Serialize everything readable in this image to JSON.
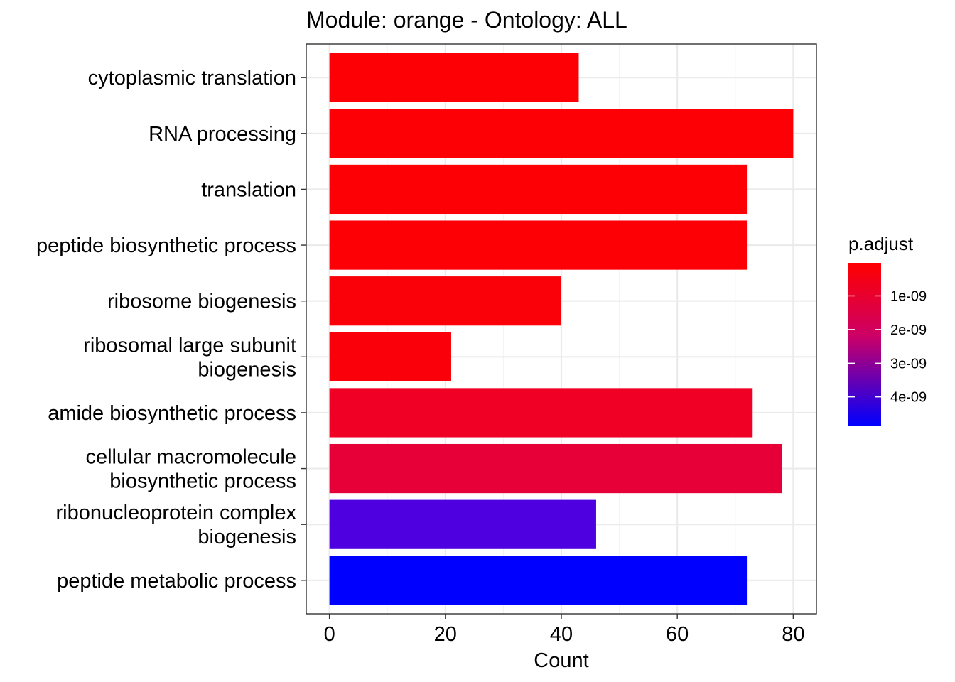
{
  "chart_data": {
    "type": "bar",
    "orientation": "horizontal",
    "title": "Module: orange - Ontology: ALL",
    "xlabel": "Count",
    "ylabel": "",
    "xlim": [
      -4,
      84
    ],
    "x_ticks": [
      0,
      20,
      40,
      60,
      80
    ],
    "grid": true,
    "categories": [
      [
        "cytoplasmic translation"
      ],
      [
        "RNA processing"
      ],
      [
        "translation"
      ],
      [
        "peptide biosynthetic process"
      ],
      [
        "ribosome biogenesis"
      ],
      [
        "ribosomal large subunit",
        "biogenesis"
      ],
      [
        "amide biosynthetic process"
      ],
      [
        "cellular macromolecule",
        "biosynthetic process"
      ],
      [
        "ribonucleoprotein complex",
        "biogenesis"
      ],
      [
        "peptide metabolic process"
      ]
    ],
    "values": [
      43,
      80,
      72,
      72,
      40,
      21,
      73,
      78,
      46,
      72
    ],
    "bar_colors": [
      "#fd0005",
      "#fd0005",
      "#fd0006",
      "#fd0006",
      "#fa0009",
      "#fa000a",
      "#ef0024",
      "#e70038",
      "#4f00e0",
      "#0000ff"
    ],
    "legend": {
      "title": "p.adjust",
      "placement": "right",
      "low_color": "#ff0000",
      "high_color": "#0000ff",
      "ticks": [
        "1e-09",
        "2e-09",
        "3e-09",
        "4e-09"
      ],
      "tick_values": [
        1e-09,
        2e-09,
        3e-09,
        4e-09
      ],
      "range": [
        2e-11,
        4.85e-09
      ]
    }
  }
}
